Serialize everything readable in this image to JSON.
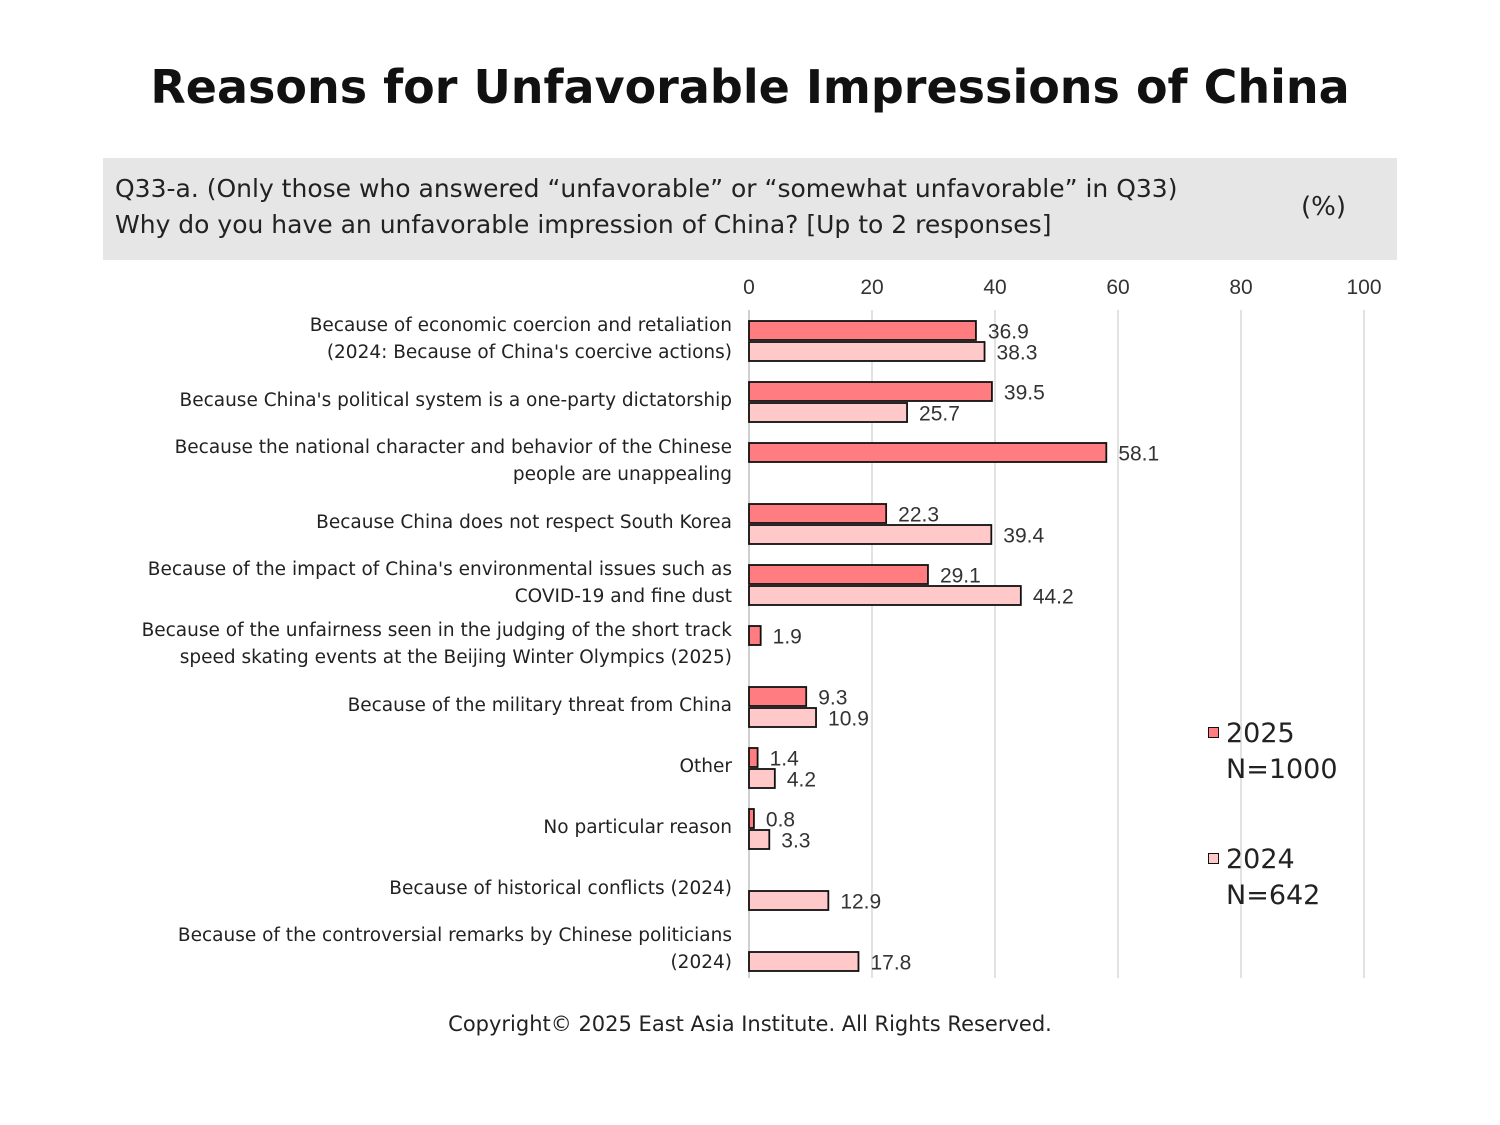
{
  "title": "Reasons for Unfavorable Impressions of China",
  "question": {
    "line1": "Q33-a. (Only those who answered “unfavorable” or “somewhat unfavorable” in Q33)",
    "line2": "Why do you have an unfavorable impression of China? [Up to 2 responses]",
    "unit": "(%)"
  },
  "footer": "Copyright© 2025 East Asia Institute. All Rights Reserved.",
  "colors": {
    "s2025": "#ff7c80",
    "s2024": "#ffc9c9",
    "border": "#111111",
    "grid": "#d9d9d9"
  },
  "legend": [
    {
      "year": "2025",
      "n": "N=1000"
    },
    {
      "year": "2024",
      "n": "N=642"
    }
  ],
  "chart_data": {
    "type": "bar",
    "orientation": "horizontal",
    "title": "Reasons for Unfavorable Impressions of China",
    "xlim": [
      0,
      100
    ],
    "xticks": [
      0,
      20,
      40,
      60,
      80,
      100
    ],
    "grid": true,
    "legend_position": "right",
    "categories": [
      [
        "Because of economic coercion and retaliation",
        "(2024: Because of China's coercive actions)"
      ],
      [
        "Because China's political system is a one-party dictatorship"
      ],
      [
        "Because the national character and behavior of the Chinese",
        "people are unappealing"
      ],
      [
        "Because China does not respect South Korea"
      ],
      [
        "Because of the impact of China's environmental issues such as",
        "COVID-19 and fine dust"
      ],
      [
        "Because of the unfairness seen in the judging of the short track",
        "speed skating events at the Beijing Winter Olympics (2025)"
      ],
      [
        "Because of the military threat from China"
      ],
      [
        "Other"
      ],
      [
        "No particular reason"
      ],
      [
        "Because of historical conflicts (2024)"
      ],
      [
        "Because of the controversial remarks by Chinese politicians",
        "(2024)"
      ]
    ],
    "series": [
      {
        "name": "2025",
        "values": [
          36.9,
          39.5,
          58.1,
          22.3,
          29.1,
          1.9,
          9.3,
          1.4,
          0.8,
          null,
          null
        ]
      },
      {
        "name": "2024",
        "values": [
          38.3,
          25.7,
          null,
          39.4,
          44.2,
          null,
          10.9,
          4.2,
          3.3,
          12.9,
          17.8
        ]
      }
    ]
  }
}
